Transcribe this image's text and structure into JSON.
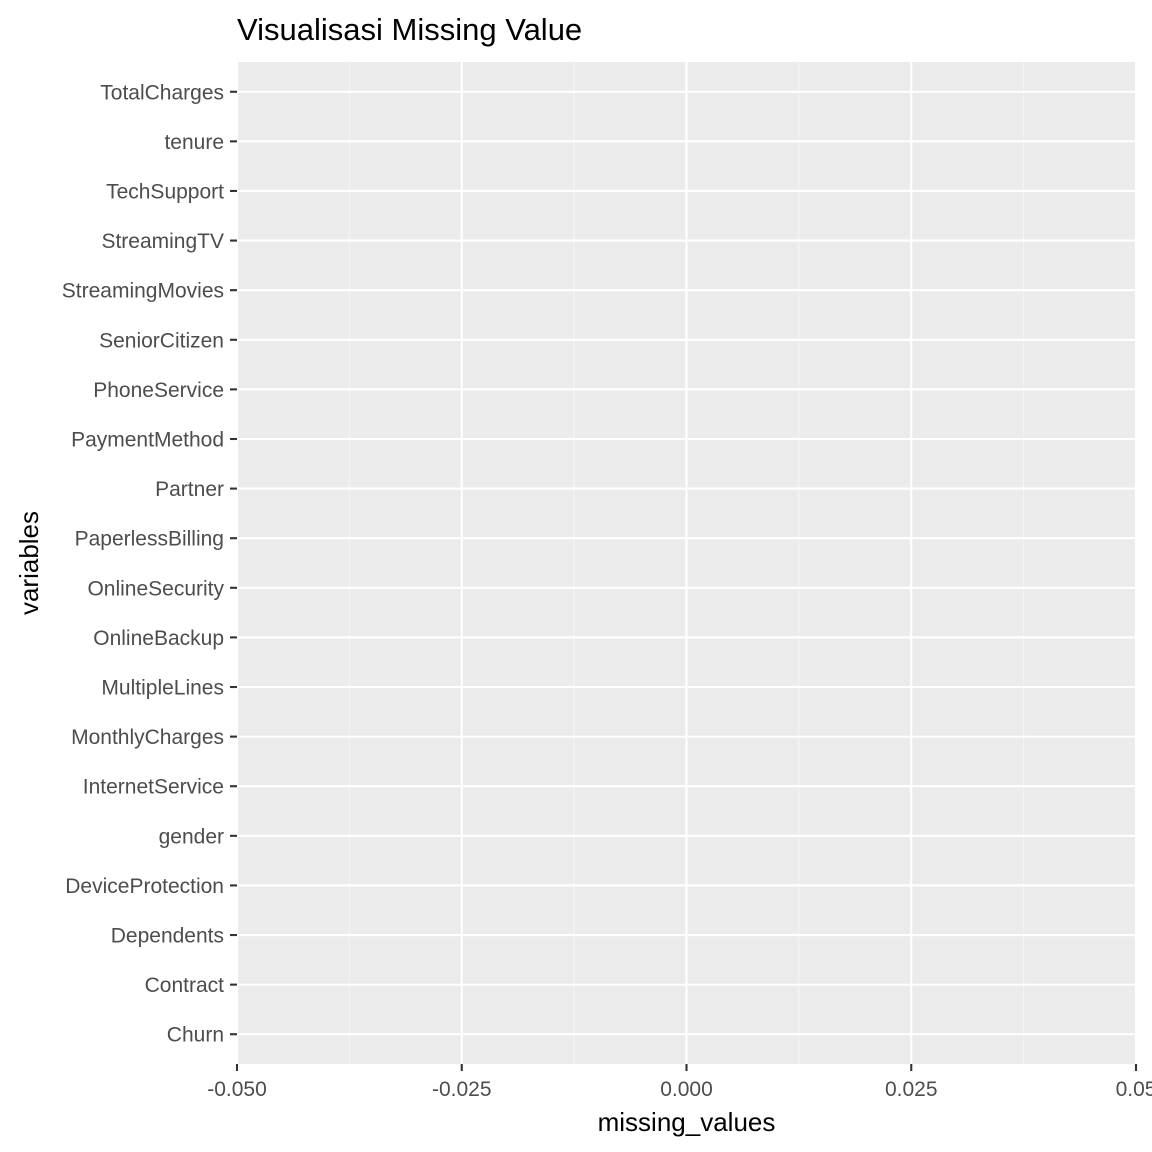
{
  "chart_data": {
    "type": "bar",
    "orientation": "horizontal",
    "title": "Visualisasi Missing Value",
    "xlabel": "missing_values",
    "ylabel": "variables",
    "xlim": [
      -0.05,
      0.05
    ],
    "x_ticks": [
      -0.05,
      -0.025,
      0.0,
      0.025,
      0.05
    ],
    "x_tick_labels": [
      "-0.050",
      "-0.025",
      "0.000",
      "0.025",
      "0.05"
    ],
    "categories": [
      "Churn",
      "Contract",
      "Dependents",
      "DeviceProtection",
      "gender",
      "InternetService",
      "MonthlyCharges",
      "MultipleLines",
      "OnlineBackup",
      "OnlineSecurity",
      "PaperlessBilling",
      "Partner",
      "PaymentMethod",
      "PhoneService",
      "SeniorCitizen",
      "StreamingMovies",
      "StreamingTV",
      "TechSupport",
      "tenure",
      "TotalCharges"
    ],
    "values": [
      0,
      0,
      0,
      0,
      0,
      0,
      0,
      0,
      0,
      0,
      0,
      0,
      0,
      0,
      0,
      0,
      0,
      0,
      0,
      0
    ],
    "grid": true,
    "legend": "none",
    "colors": {
      "panel_background": "#ebebeb",
      "grid_major": "#ffffff",
      "grid_minor": "#f5f5f5",
      "tick_text": "#4d4d4d",
      "tick_mark": "#333333",
      "title_text": "#000000",
      "bar_fill": "#595959"
    }
  }
}
